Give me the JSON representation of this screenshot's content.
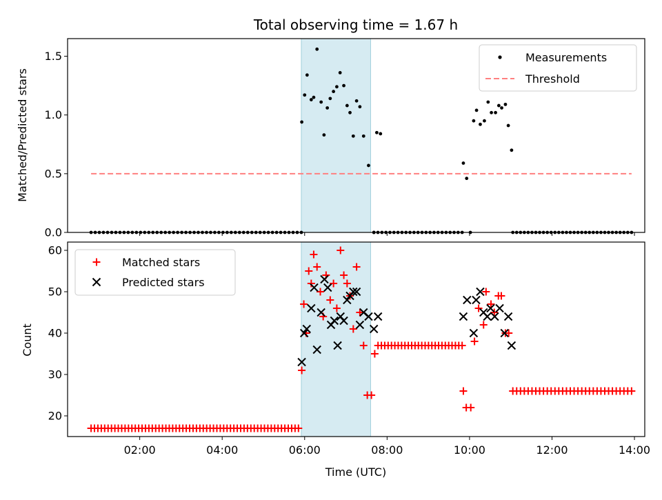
{
  "chart_data": [
    {
      "type": "scatter",
      "title": "Total observing time = 1.67 h",
      "xlabel": "",
      "ylabel": "Matched/Predicted stars",
      "xlim": [
        0.25,
        14.25
      ],
      "ylim": [
        0,
        1.65
      ],
      "yticks": [
        0.0,
        0.5,
        1.0,
        1.5
      ],
      "ytick_labels": [
        "0.0",
        "0.5",
        "1.0",
        "1.5"
      ],
      "highlight_span": [
        5.92,
        7.6
      ],
      "legend_position": "top-right",
      "series": [
        {
          "name": "Measurements",
          "style": "dot",
          "color": "#000000",
          "zero_runs": [
            [
              0.82,
              5.92,
              52
            ],
            [
              7.68,
              9.82,
              23
            ],
            [
              11.05,
              13.93,
              32
            ]
          ],
          "points": [
            [
              5.93,
              0.94
            ],
            [
              6.0,
              1.17
            ],
            [
              6.06,
              1.34
            ],
            [
              6.16,
              1.13
            ],
            [
              6.22,
              1.15
            ],
            [
              6.3,
              1.56
            ],
            [
              6.4,
              1.11
            ],
            [
              6.47,
              0.83
            ],
            [
              6.55,
              1.06
            ],
            [
              6.62,
              1.14
            ],
            [
              6.7,
              1.2
            ],
            [
              6.78,
              1.24
            ],
            [
              6.86,
              1.36
            ],
            [
              6.95,
              1.25
            ],
            [
              7.03,
              1.08
            ],
            [
              7.1,
              1.02
            ],
            [
              7.18,
              0.82
            ],
            [
              7.26,
              1.12
            ],
            [
              7.34,
              1.07
            ],
            [
              7.43,
              0.82
            ],
            [
              7.55,
              0.57
            ],
            [
              7.68,
              0.0
            ],
            [
              7.75,
              0.85
            ],
            [
              7.84,
              0.84
            ],
            [
              9.85,
              0.59
            ],
            [
              9.93,
              0.46
            ],
            [
              10.02,
              0.0
            ],
            [
              10.1,
              0.95
            ],
            [
              10.17,
              1.04
            ],
            [
              10.26,
              0.92
            ],
            [
              10.36,
              0.95
            ],
            [
              10.45,
              1.11
            ],
            [
              10.53,
              1.02
            ],
            [
              10.63,
              1.02
            ],
            [
              10.71,
              1.08
            ],
            [
              10.78,
              1.06
            ],
            [
              10.87,
              1.09
            ],
            [
              10.94,
              0.91
            ],
            [
              11.02,
              0.7
            ]
          ]
        },
        {
          "name": "Threshold",
          "style": "dashed-line",
          "color": "#ff7f7f",
          "x": [
            0.82,
            13.93
          ],
          "y": [
            0.5,
            0.5
          ]
        }
      ]
    },
    {
      "type": "scatter",
      "title": "",
      "xlabel": "Time (UTC)",
      "ylabel": "Count",
      "xlim": [
        0.25,
        14.25
      ],
      "ylim": [
        15,
        62
      ],
      "xticks": [
        2,
        4,
        6,
        8,
        10,
        12,
        14
      ],
      "xtick_labels": [
        "02:00",
        "04:00",
        "06:00",
        "08:00",
        "10:00",
        "12:00",
        "14:00"
      ],
      "yticks": [
        20,
        30,
        40,
        50,
        60
      ],
      "ytick_labels": [
        "20",
        "30",
        "40",
        "50",
        "60"
      ],
      "highlight_span": [
        5.92,
        7.6
      ],
      "legend_position": "top-left",
      "series": [
        {
          "name": "Matched stars",
          "style": "plus",
          "color": "#ff0000",
          "constant_runs": [
            [
              0.82,
              5.85,
              17,
              62
            ],
            [
              7.78,
              9.82,
              37,
              26
            ],
            [
              11.05,
              13.93,
              26,
              32
            ]
          ],
          "points": [
            [
              5.93,
              31
            ],
            [
              5.98,
              47
            ],
            [
              6.04,
              40
            ],
            [
              6.1,
              55
            ],
            [
              6.16,
              52
            ],
            [
              6.22,
              59
            ],
            [
              6.3,
              56
            ],
            [
              6.38,
              50
            ],
            [
              6.45,
              44
            ],
            [
              6.52,
              54
            ],
            [
              6.62,
              48
            ],
            [
              6.7,
              52
            ],
            [
              6.78,
              46
            ],
            [
              6.87,
              60
            ],
            [
              6.95,
              54
            ],
            [
              7.03,
              52
            ],
            [
              7.1,
              49
            ],
            [
              7.18,
              41
            ],
            [
              7.26,
              56
            ],
            [
              7.34,
              45
            ],
            [
              7.43,
              37
            ],
            [
              7.52,
              25
            ],
            [
              7.62,
              25
            ],
            [
              7.7,
              35
            ],
            [
              9.85,
              26
            ],
            [
              9.92,
              22
            ],
            [
              10.03,
              22
            ],
            [
              10.12,
              38
            ],
            [
              10.22,
              46
            ],
            [
              10.34,
              42
            ],
            [
              10.4,
              50
            ],
            [
              10.52,
              47
            ],
            [
              10.6,
              45
            ],
            [
              10.7,
              49
            ],
            [
              10.77,
              49
            ],
            [
              10.87,
              40
            ],
            [
              10.95,
              40
            ]
          ]
        },
        {
          "name": "Predicted stars",
          "style": "x",
          "color": "#000000",
          "points": [
            [
              5.93,
              33
            ],
            [
              5.99,
              40
            ],
            [
              6.05,
              41
            ],
            [
              6.16,
              46
            ],
            [
              6.23,
              51
            ],
            [
              6.3,
              36
            ],
            [
              6.4,
              45
            ],
            [
              6.48,
              53
            ],
            [
              6.56,
              51
            ],
            [
              6.64,
              42
            ],
            [
              6.72,
              43
            ],
            [
              6.8,
              37
            ],
            [
              6.87,
              44
            ],
            [
              6.95,
              43
            ],
            [
              7.03,
              48
            ],
            [
              7.1,
              49
            ],
            [
              7.18,
              50
            ],
            [
              7.26,
              50
            ],
            [
              7.34,
              42
            ],
            [
              7.43,
              45
            ],
            [
              7.55,
              44
            ],
            [
              7.68,
              41
            ],
            [
              7.78,
              44
            ],
            [
              9.85,
              44
            ],
            [
              9.94,
              48
            ],
            [
              10.1,
              40
            ],
            [
              10.16,
              48
            ],
            [
              10.26,
              50
            ],
            [
              10.34,
              45
            ],
            [
              10.43,
              44
            ],
            [
              10.51,
              46
            ],
            [
              10.61,
              44
            ],
            [
              10.73,
              46
            ],
            [
              10.85,
              40
            ],
            [
              10.94,
              44
            ],
            [
              11.02,
              37
            ]
          ]
        }
      ]
    }
  ]
}
